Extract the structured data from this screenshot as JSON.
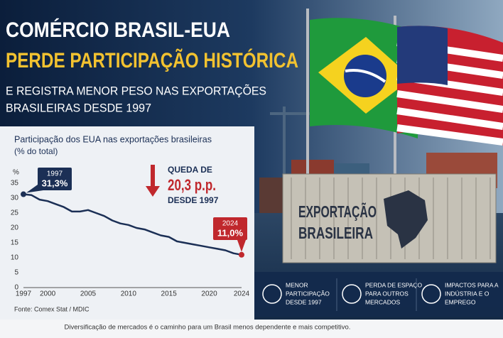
{
  "header": {
    "title": [
      "COMÉRCIO BRASIL-EUA",
      "PERDE PARTICIPAÇÃO HISTÓRICA"
    ],
    "subtitle": [
      "E REGISTRA MENOR PESO NAS EXPORTAÇÕES",
      "BRASILEIRAS DESDE 1997"
    ]
  },
  "chart_data": {
    "type": "line",
    "title": "Participação dos EUA nas exportações brasileiras",
    "subtitle": "(% do total)",
    "y_label": "%",
    "x": [
      1997,
      1998,
      1999,
      2000,
      2001,
      2002,
      2003,
      2004,
      2005,
      2006,
      2007,
      2008,
      2009,
      2010,
      2011,
      2012,
      2013,
      2014,
      2015,
      2016,
      2017,
      2018,
      2019,
      2020,
      2021,
      2022,
      2023,
      2024
    ],
    "series": [
      {
        "name": "EUA",
        "color": "#1b2f55",
        "values": [
          31.3,
          31,
          29.5,
          29,
          28,
          27,
          25.5,
          25.5,
          26,
          25,
          24,
          22.5,
          21.5,
          21,
          20,
          19.5,
          18.5,
          17.5,
          17,
          15.5,
          15,
          14.5,
          14,
          13.5,
          13,
          12.5,
          11.5,
          11.0
        ],
        "value_labels": [
          "31,3%",
          null,
          null,
          null,
          null,
          null,
          null,
          null,
          null,
          null,
          null,
          null,
          null,
          null,
          null,
          null,
          null,
          null,
          null,
          null,
          null,
          null,
          null,
          null,
          null,
          null,
          null,
          "11,0%"
        ]
      }
    ],
    "xlim": [
      1997,
      2024
    ],
    "xticks": [
      1997,
      2000,
      2005,
      2010,
      2015,
      2020,
      2024
    ],
    "ylim": [
      0,
      35
    ],
    "yticks": [
      0,
      5,
      10,
      15,
      20,
      25,
      30,
      35
    ],
    "grid": false,
    "annotation": [
      "QUEDA DE",
      "20,3 p.p.",
      "DESDE 1997"
    ],
    "source": "Fonte: Comex Stat / MDIC"
  },
  "container": [
    "EXPORTAÇÃO",
    "BRASILEIRA"
  ],
  "info": [
    [
      "MENOR",
      "PARTICIPAÇÃO",
      "DESDE 1997"
    ],
    [
      "PERDA DE ESPAÇO",
      "PARA OUTROS",
      "MERCADOS"
    ],
    [
      "IMPACTOS PARA A",
      "INDÚSTRIA E O",
      "EMPREGO"
    ]
  ],
  "footer": "Diversificação de mercados é o caminho para um Brasil menos dependente e mais competitivo."
}
